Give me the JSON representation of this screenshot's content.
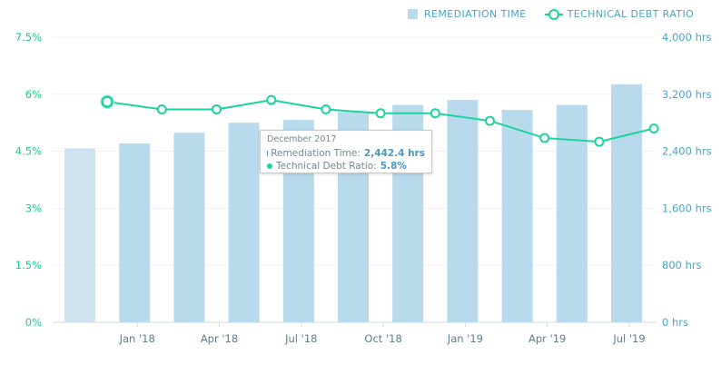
{
  "chart_data": {
    "type": "bar",
    "x": [
      "2017-11",
      "2017-12",
      "2018-01",
      "2018-02",
      "2018-03",
      "2018-04",
      "2018-05",
      "2018-06",
      "2018-07",
      "2018-08",
      "2018-09",
      "2018-10",
      "2018-11",
      "2018-12",
      "2019-01",
      "2019-02",
      "2019-03",
      "2019-04",
      "2019-05",
      "2019-06",
      "2019-07",
      "2019-08"
    ],
    "x_tick_labels": [
      "Jan '18",
      "Apr '18",
      "Jul '18",
      "Oct '18",
      "Jan '19",
      "Apr '19",
      "Jul '19"
    ],
    "series": [
      {
        "name": "REMEDIATION TIME",
        "type": "bar",
        "axis": "right",
        "bars": [
          {
            "x": "2017-11",
            "value": 2442.4
          },
          {
            "x": "2018-01",
            "value": 2510
          },
          {
            "x": "2018-03",
            "value": 2660
          },
          {
            "x": "2018-05",
            "value": 2800
          },
          {
            "x": "2018-07",
            "value": 2840
          },
          {
            "x": "2018-09",
            "value": 2950
          },
          {
            "x": "2018-11",
            "value": 3050
          },
          {
            "x": "2019-01",
            "value": 3120
          },
          {
            "x": "2019-03",
            "value": 2980
          },
          {
            "x": "2019-05",
            "value": 3050
          },
          {
            "x": "2019-07",
            "value": 3340
          }
        ]
      },
      {
        "name": "TECHNICAL DEBT RATIO",
        "type": "line",
        "axis": "left",
        "points": [
          {
            "x": "2017-12",
            "value": 5.8
          },
          {
            "x": "2018-02",
            "value": 5.6
          },
          {
            "x": "2018-04",
            "value": 5.6
          },
          {
            "x": "2018-06",
            "value": 5.85
          },
          {
            "x": "2018-08",
            "value": 5.6
          },
          {
            "x": "2018-10",
            "value": 5.5
          },
          {
            "x": "2018-12",
            "value": 5.5
          },
          {
            "x": "2019-02",
            "value": 5.3
          },
          {
            "x": "2019-04",
            "value": 4.85
          },
          {
            "x": "2019-06",
            "value": 4.75
          },
          {
            "x": "2019-08",
            "value": 5.1
          }
        ]
      }
    ],
    "y_left": {
      "ylim": [
        0,
        7.5
      ],
      "ticks": [
        "0%",
        "1.5%",
        "3%",
        "4.5%",
        "6%",
        "7.5%"
      ],
      "tick_values": [
        0,
        1.5,
        3,
        4.5,
        6,
        7.5
      ]
    },
    "y_right": {
      "ylim": [
        0,
        4000
      ],
      "ticks": [
        "0 hrs",
        "800 hrs",
        "1,600 hrs",
        "2,400 hrs",
        "3,200 hrs",
        "4,000 hrs"
      ],
      "tick_values": [
        0,
        800,
        1600,
        2400,
        3200,
        4000
      ]
    },
    "grid": true,
    "legend": "top-right",
    "colors": {
      "bar": "#b9d9ec",
      "bar_highlight": "#cfe3ef",
      "line": "#19d49c",
      "left_axis": "#19c992",
      "right_axis": "#4aa4c6",
      "axis_text": "#5b7e8c"
    },
    "tooltip": {
      "title": "December 2017",
      "rows": [
        {
          "label": "Remediation Time:",
          "value": "2,442.4 hrs",
          "color": "#4a98c2"
        },
        {
          "label": "Technical Debt Ratio:",
          "value": "5.8%",
          "color": "#19d49c"
        }
      ]
    },
    "highlighted_index": 0
  },
  "legend": {
    "bar_label": "REMEDIATION TIME",
    "line_label": "TECHNICAL DEBT RATIO"
  }
}
